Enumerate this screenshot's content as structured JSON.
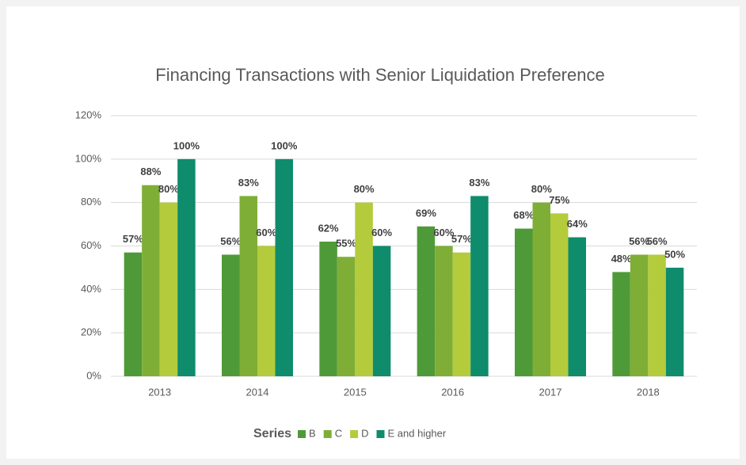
{
  "chart_data": {
    "type": "bar",
    "title": "Financing Transactions with Senior Liquidation Preference",
    "categories": [
      "2013",
      "2014",
      "2015",
      "2016",
      "2017",
      "2018"
    ],
    "series": [
      {
        "name": "B",
        "color": "#4f9a38",
        "values": [
          57,
          56,
          62,
          69,
          68,
          48
        ],
        "value_labels": [
          "57%",
          "56%",
          "62%",
          "69%",
          "68%",
          "48%"
        ]
      },
      {
        "name": "C",
        "color": "#7fae36",
        "values": [
          88,
          83,
          55,
          60,
          80,
          56
        ],
        "value_labels": [
          "88%",
          "83%",
          "55%",
          "60%",
          "80%",
          "56%"
        ]
      },
      {
        "name": "D",
        "color": "#b4cb3c",
        "values": [
          80,
          60,
          80,
          57,
          75,
          56
        ],
        "value_labels": [
          "80%",
          "60%",
          "80%",
          "57%",
          "75%",
          "56%"
        ]
      },
      {
        "name": "E and higher",
        "color": "#0e8c6c",
        "values": [
          100,
          100,
          60,
          83,
          64,
          50
        ],
        "value_labels": [
          "100%",
          "100%",
          "60%",
          "83%",
          "64%",
          "50%"
        ]
      }
    ],
    "ylim": [
      0,
      120
    ],
    "yticks": [
      {
        "value": 0,
        "label": "0%"
      },
      {
        "value": 20,
        "label": "20%"
      },
      {
        "value": 40,
        "label": "40%"
      },
      {
        "value": 60,
        "label": "60%"
      },
      {
        "value": 80,
        "label": "80%"
      },
      {
        "value": 100,
        "label": "100%"
      },
      {
        "value": 120,
        "label": "120%"
      }
    ],
    "grid": true,
    "legend_title": "Series",
    "legend_position": "bottom"
  }
}
